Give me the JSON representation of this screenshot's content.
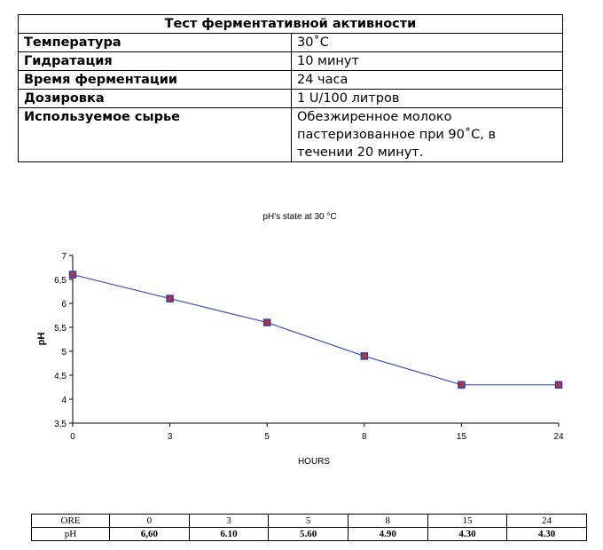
{
  "spec_table": {
    "title": "Тест ферментативной активности",
    "rows": [
      {
        "key": "Температура",
        "value": "30˚C"
      },
      {
        "key": "Гидратация",
        "value": "10 минут"
      },
      {
        "key": "Время ферментации",
        "value": "24 часа"
      },
      {
        "key": "Дозировка",
        "value": "1 U/100 литров"
      },
      {
        "key": "Используемое сырье",
        "value_lines": [
          "Обезжиренное молоко",
          "пастеризованное при 90˚C, в",
          "течении 20 минут."
        ]
      }
    ]
  },
  "chart_data": {
    "type": "line",
    "title": "pH's state at 30 °C",
    "xlabel": "HOURS",
    "ylabel": "pH",
    "categories": [
      "0",
      "3",
      "5",
      "8",
      "15",
      "24"
    ],
    "y_ticks": [
      "3,5",
      "4",
      "4,5",
      "5",
      "5,5",
      "6",
      "6,5",
      "7"
    ],
    "ylim": [
      3.5,
      7
    ],
    "grid": false,
    "series": [
      {
        "values": [
          6.6,
          6.1,
          5.6,
          4.9,
          4.3,
          4.3
        ]
      }
    ],
    "line_color": "#3a4fb5",
    "marker_color": "#c0303a",
    "marker_edge_color": "#2a3fa8"
  },
  "ph_table": {
    "header": [
      "ORE",
      "0",
      "3",
      "5",
      "8",
      "15",
      "24"
    ],
    "row": [
      "pH",
      "6,60",
      "6.10",
      "5.60",
      "4.90",
      "4.30",
      "4.30"
    ]
  }
}
